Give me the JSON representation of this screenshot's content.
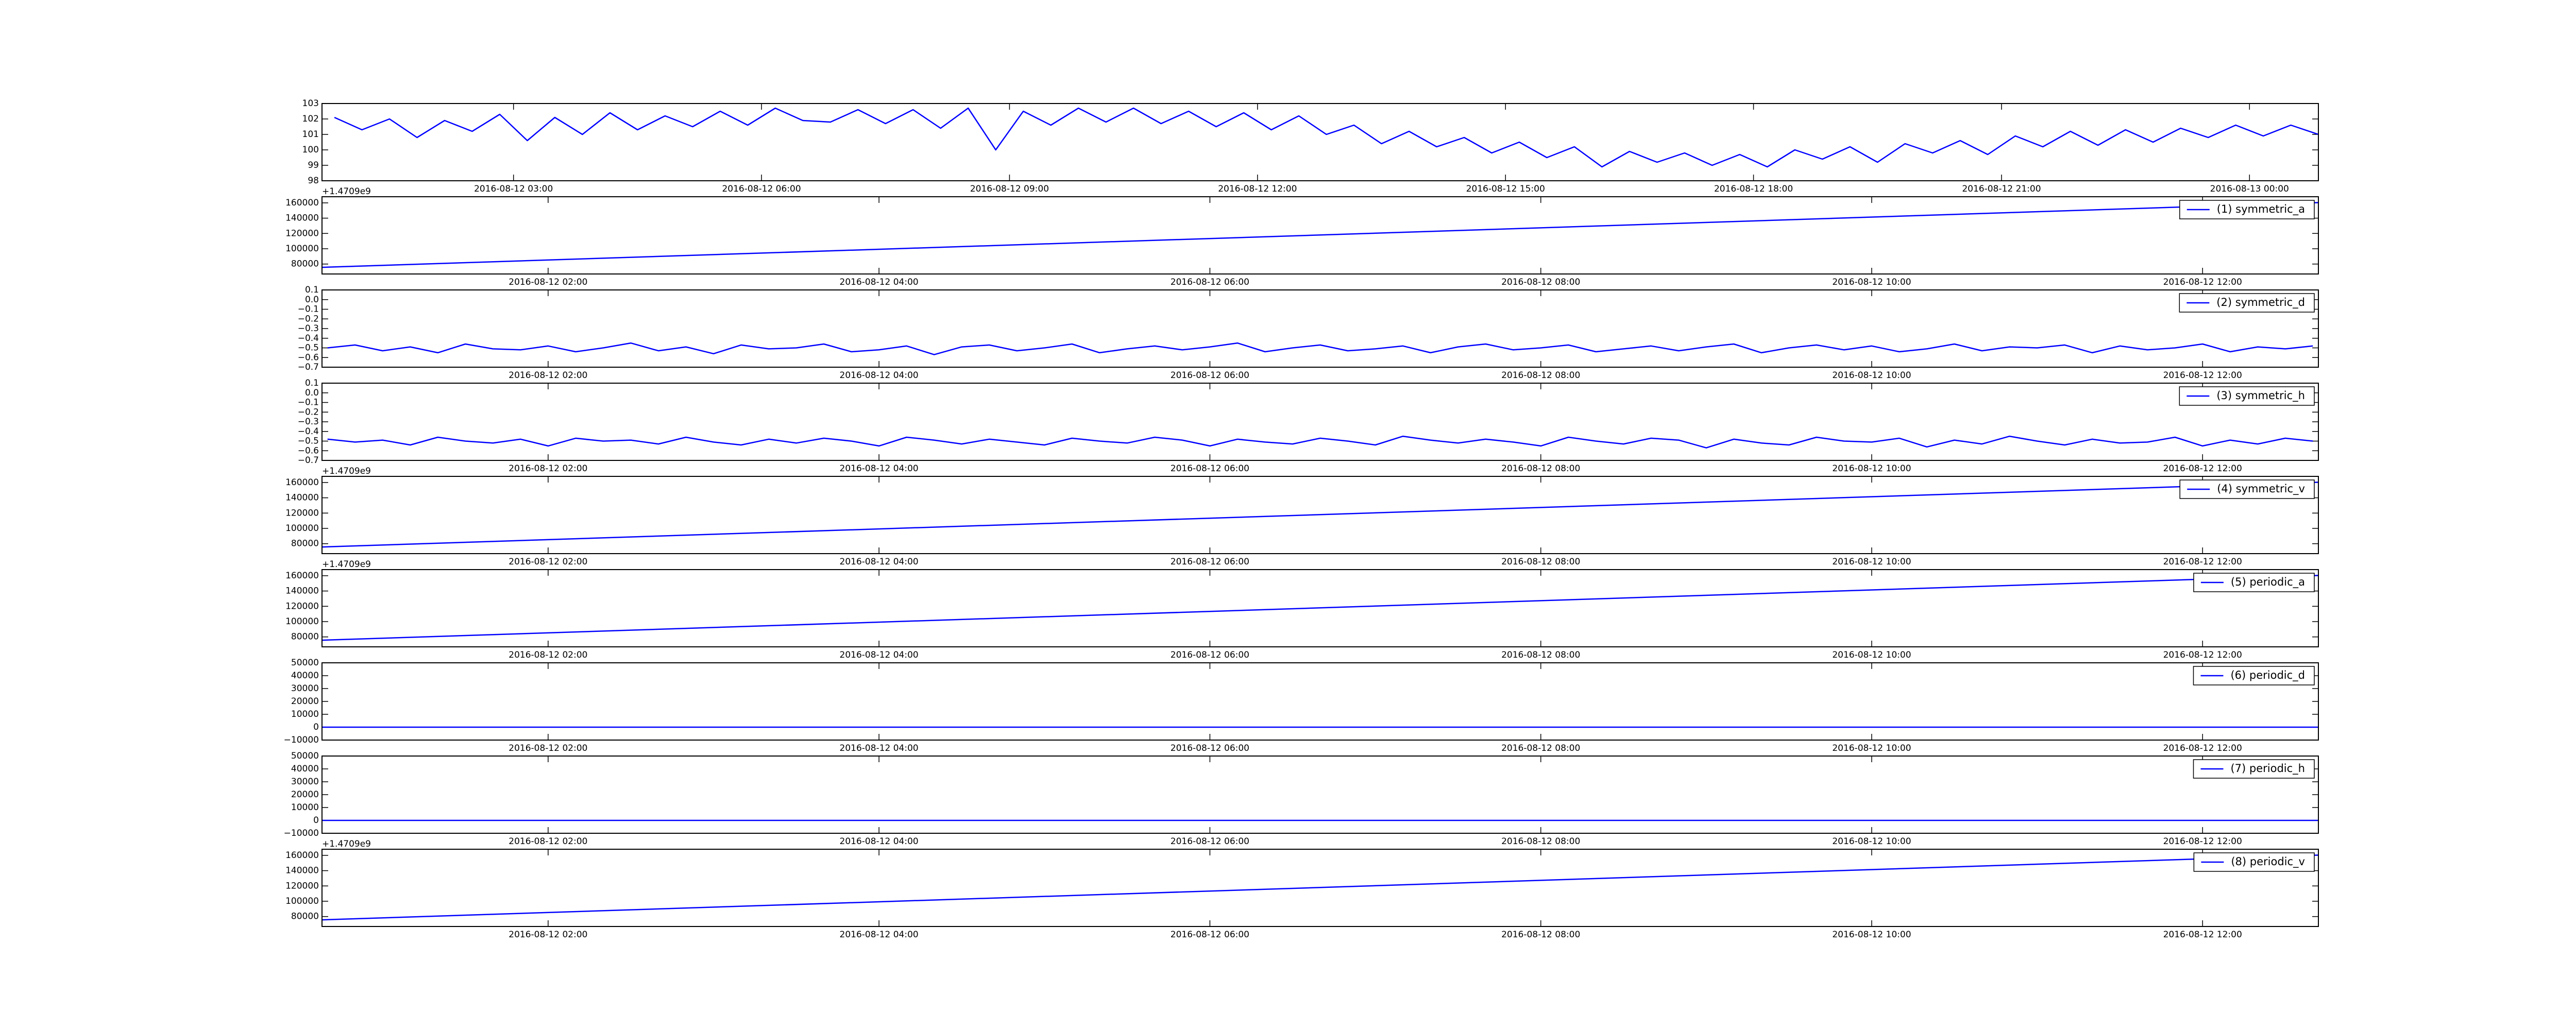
{
  "chart_data": [
    {
      "type": "line",
      "xlim": [
        "2016-08-12 00:41",
        "2016-08-13 00:50"
      ],
      "xticks": [
        "2016-08-12 03:00",
        "2016-08-12 06:00",
        "2016-08-12 09:00",
        "2016-08-12 12:00",
        "2016-08-12 15:00",
        "2016-08-12 18:00",
        "2016-08-12 21:00",
        "2016-08-13 00:00"
      ],
      "ylim": [
        98,
        103
      ],
      "yticks": [
        98,
        99,
        100,
        101,
        102,
        103
      ],
      "x": [
        "2016-08-12 00:50",
        "2016-08-12 01:10",
        "2016-08-12 01:30",
        "2016-08-12 01:50",
        "2016-08-12 02:10",
        "2016-08-12 02:30",
        "2016-08-12 02:50",
        "2016-08-12 03:10",
        "2016-08-12 03:30",
        "2016-08-12 03:50",
        "2016-08-12 04:10",
        "2016-08-12 04:30",
        "2016-08-12 04:50",
        "2016-08-12 05:10",
        "2016-08-12 05:30",
        "2016-08-12 05:50",
        "2016-08-12 06:10",
        "2016-08-12 06:30",
        "2016-08-12 06:50",
        "2016-08-12 07:10",
        "2016-08-12 07:30",
        "2016-08-12 07:50",
        "2016-08-12 08:10",
        "2016-08-12 08:30",
        "2016-08-12 08:50",
        "2016-08-12 09:10",
        "2016-08-12 09:30",
        "2016-08-12 09:50",
        "2016-08-12 10:10",
        "2016-08-12 10:30",
        "2016-08-12 10:50",
        "2016-08-12 11:10",
        "2016-08-12 11:30",
        "2016-08-12 11:50",
        "2016-08-12 12:10",
        "2016-08-12 12:30",
        "2016-08-12 12:50",
        "2016-08-12 13:10",
        "2016-08-12 13:30",
        "2016-08-12 13:50",
        "2016-08-12 14:10",
        "2016-08-12 14:30",
        "2016-08-12 14:50",
        "2016-08-12 15:10",
        "2016-08-12 15:30",
        "2016-08-12 15:50",
        "2016-08-12 16:10",
        "2016-08-12 16:30",
        "2016-08-12 16:50",
        "2016-08-12 17:10",
        "2016-08-12 17:30",
        "2016-08-12 17:50",
        "2016-08-12 18:10",
        "2016-08-12 18:30",
        "2016-08-12 18:50",
        "2016-08-12 19:10",
        "2016-08-12 19:30",
        "2016-08-12 19:50",
        "2016-08-12 20:10",
        "2016-08-12 20:30",
        "2016-08-12 20:50",
        "2016-08-12 21:10",
        "2016-08-12 21:30",
        "2016-08-12 21:50",
        "2016-08-12 22:10",
        "2016-08-12 22:30",
        "2016-08-12 22:50",
        "2016-08-12 23:10",
        "2016-08-12 23:30",
        "2016-08-12 23:50",
        "2016-08-13 00:10",
        "2016-08-13 00:30",
        "2016-08-13 00:50"
      ],
      "series": [
        {
          "color": "#0000ff",
          "values": [
            102.1,
            101.3,
            102.0,
            100.8,
            101.9,
            101.2,
            102.3,
            100.6,
            102.1,
            101.0,
            102.4,
            101.3,
            102.2,
            101.5,
            102.5,
            101.6,
            102.7,
            101.9,
            101.8,
            102.6,
            101.7,
            102.6,
            101.4,
            102.7,
            100.0,
            102.5,
            101.6,
            102.7,
            101.8,
            102.7,
            101.7,
            102.5,
            101.5,
            102.4,
            101.3,
            102.2,
            101.0,
            101.6,
            100.4,
            101.2,
            100.2,
            100.8,
            99.8,
            100.5,
            99.5,
            100.2,
            98.9,
            99.9,
            99.2,
            99.8,
            99.0,
            99.7,
            98.9,
            100.0,
            99.4,
            100.2,
            99.2,
            100.4,
            99.8,
            100.6,
            99.7,
            100.9,
            100.2,
            101.2,
            100.3,
            101.3,
            100.5,
            101.4,
            100.8,
            101.6,
            100.9,
            101.6,
            101.0
          ]
        }
      ]
    },
    {
      "type": "line",
      "offset_text": "+1.4709e9",
      "legend": "upper right",
      "xlim": [
        "2016-08-12 00:38",
        "2016-08-12 12:42"
      ],
      "xticks": [
        "2016-08-12 02:00",
        "2016-08-12 04:00",
        "2016-08-12 06:00",
        "2016-08-12 08:00",
        "2016-08-12 10:00",
        "2016-08-12 12:00"
      ],
      "ylim": [
        67000,
        168000
      ],
      "yticks": [
        80000,
        100000,
        120000,
        140000,
        160000
      ],
      "x": [
        "2016-08-12 00:38",
        "2016-08-12 12:42"
      ],
      "series": [
        {
          "name": "(1) symmetric_a",
          "color": "#0000ff",
          "values": [
            75700,
            160300
          ]
        }
      ]
    },
    {
      "type": "line",
      "legend": "upper right",
      "xlim": [
        "2016-08-12 00:38",
        "2016-08-12 12:42"
      ],
      "xticks": [
        "2016-08-12 02:00",
        "2016-08-12 04:00",
        "2016-08-12 06:00",
        "2016-08-12 08:00",
        "2016-08-12 10:00",
        "2016-08-12 12:00"
      ],
      "ylim": [
        -0.7,
        0.1
      ],
      "yticks": [
        {
          "value": -0.7,
          "label": "−0.7"
        },
        {
          "value": -0.6,
          "label": "−0.6"
        },
        {
          "value": -0.5,
          "label": "−0.5"
        },
        {
          "value": -0.4,
          "label": "−0.4"
        },
        {
          "value": -0.3,
          "label": "−0.3"
        },
        {
          "value": -0.2,
          "label": "−0.2"
        },
        {
          "value": -0.1,
          "label": "−0.1"
        },
        {
          "value": 0,
          "label": "0.0"
        },
        0.1
      ],
      "x": [
        "2016-08-12 00:40",
        "2016-08-12 00:50",
        "2016-08-12 01:00",
        "2016-08-12 01:10",
        "2016-08-12 01:20",
        "2016-08-12 01:30",
        "2016-08-12 01:40",
        "2016-08-12 01:50",
        "2016-08-12 02:00",
        "2016-08-12 02:10",
        "2016-08-12 02:20",
        "2016-08-12 02:30",
        "2016-08-12 02:40",
        "2016-08-12 02:50",
        "2016-08-12 03:00",
        "2016-08-12 03:10",
        "2016-08-12 03:20",
        "2016-08-12 03:30",
        "2016-08-12 03:40",
        "2016-08-12 03:50",
        "2016-08-12 04:00",
        "2016-08-12 04:10",
        "2016-08-12 04:20",
        "2016-08-12 04:30",
        "2016-08-12 04:40",
        "2016-08-12 04:50",
        "2016-08-12 05:00",
        "2016-08-12 05:10",
        "2016-08-12 05:20",
        "2016-08-12 05:30",
        "2016-08-12 05:40",
        "2016-08-12 05:50",
        "2016-08-12 06:00",
        "2016-08-12 06:10",
        "2016-08-12 06:20",
        "2016-08-12 06:30",
        "2016-08-12 06:40",
        "2016-08-12 06:50",
        "2016-08-12 07:00",
        "2016-08-12 07:10",
        "2016-08-12 07:20",
        "2016-08-12 07:30",
        "2016-08-12 07:40",
        "2016-08-12 07:50",
        "2016-08-12 08:00",
        "2016-08-12 08:10",
        "2016-08-12 08:20",
        "2016-08-12 08:30",
        "2016-08-12 08:40",
        "2016-08-12 08:50",
        "2016-08-12 09:00",
        "2016-08-12 09:10",
        "2016-08-12 09:20",
        "2016-08-12 09:30",
        "2016-08-12 09:40",
        "2016-08-12 09:50",
        "2016-08-12 10:00",
        "2016-08-12 10:10",
        "2016-08-12 10:20",
        "2016-08-12 10:30",
        "2016-08-12 10:40",
        "2016-08-12 10:50",
        "2016-08-12 11:00",
        "2016-08-12 11:10",
        "2016-08-12 11:20",
        "2016-08-12 11:30",
        "2016-08-12 11:40",
        "2016-08-12 11:50",
        "2016-08-12 12:00",
        "2016-08-12 12:10",
        "2016-08-12 12:20",
        "2016-08-12 12:30",
        "2016-08-12 12:40"
      ],
      "series": [
        {
          "name": "(2) symmetric_d",
          "color": "#0000ff",
          "values": [
            -0.5,
            -0.47,
            -0.53,
            -0.49,
            -0.55,
            -0.46,
            -0.51,
            -0.52,
            -0.48,
            -0.54,
            -0.5,
            -0.45,
            -0.53,
            -0.49,
            -0.56,
            -0.47,
            -0.51,
            -0.5,
            -0.46,
            -0.54,
            -0.52,
            -0.48,
            -0.57,
            -0.49,
            -0.47,
            -0.53,
            -0.5,
            -0.46,
            -0.55,
            -0.51,
            -0.48,
            -0.52,
            -0.49,
            -0.45,
            -0.54,
            -0.5,
            -0.47,
            -0.53,
            -0.51,
            -0.48,
            -0.55,
            -0.49,
            -0.46,
            -0.52,
            -0.5,
            -0.47,
            -0.54,
            -0.51,
            -0.48,
            -0.53,
            -0.49,
            -0.46,
            -0.55,
            -0.5,
            -0.47,
            -0.52,
            -0.48,
            -0.54,
            -0.51,
            -0.46,
            -0.53,
            -0.49,
            -0.5,
            -0.47,
            -0.55,
            -0.48,
            -0.52,
            -0.5,
            -0.46,
            -0.54,
            -0.49,
            -0.51,
            -0.48
          ]
        }
      ]
    },
    {
      "type": "line",
      "legend": "upper right",
      "xlim": [
        "2016-08-12 00:38",
        "2016-08-12 12:42"
      ],
      "xticks": [
        "2016-08-12 02:00",
        "2016-08-12 04:00",
        "2016-08-12 06:00",
        "2016-08-12 08:00",
        "2016-08-12 10:00",
        "2016-08-12 12:00"
      ],
      "ylim": [
        -0.7,
        0.1
      ],
      "yticks": [
        {
          "value": -0.7,
          "label": "−0.7"
        },
        {
          "value": -0.6,
          "label": "−0.6"
        },
        {
          "value": -0.5,
          "label": "−0.5"
        },
        {
          "value": -0.4,
          "label": "−0.4"
        },
        {
          "value": -0.3,
          "label": "−0.3"
        },
        {
          "value": -0.2,
          "label": "−0.2"
        },
        {
          "value": -0.1,
          "label": "−0.1"
        },
        {
          "value": 0,
          "label": "0.0"
        },
        0.1
      ],
      "x": [
        "2016-08-12 00:40",
        "2016-08-12 00:50",
        "2016-08-12 01:00",
        "2016-08-12 01:10",
        "2016-08-12 01:20",
        "2016-08-12 01:30",
        "2016-08-12 01:40",
        "2016-08-12 01:50",
        "2016-08-12 02:00",
        "2016-08-12 02:10",
        "2016-08-12 02:20",
        "2016-08-12 02:30",
        "2016-08-12 02:40",
        "2016-08-12 02:50",
        "2016-08-12 03:00",
        "2016-08-12 03:10",
        "2016-08-12 03:20",
        "2016-08-12 03:30",
        "2016-08-12 03:40",
        "2016-08-12 03:50",
        "2016-08-12 04:00",
        "2016-08-12 04:10",
        "2016-08-12 04:20",
        "2016-08-12 04:30",
        "2016-08-12 04:40",
        "2016-08-12 04:50",
        "2016-08-12 05:00",
        "2016-08-12 05:10",
        "2016-08-12 05:20",
        "2016-08-12 05:30",
        "2016-08-12 05:40",
        "2016-08-12 05:50",
        "2016-08-12 06:00",
        "2016-08-12 06:10",
        "2016-08-12 06:20",
        "2016-08-12 06:30",
        "2016-08-12 06:40",
        "2016-08-12 06:50",
        "2016-08-12 07:00",
        "2016-08-12 07:10",
        "2016-08-12 07:20",
        "2016-08-12 07:30",
        "2016-08-12 07:40",
        "2016-08-12 07:50",
        "2016-08-12 08:00",
        "2016-08-12 08:10",
        "2016-08-12 08:20",
        "2016-08-12 08:30",
        "2016-08-12 08:40",
        "2016-08-12 08:50",
        "2016-08-12 09:00",
        "2016-08-12 09:10",
        "2016-08-12 09:20",
        "2016-08-12 09:30",
        "2016-08-12 09:40",
        "2016-08-12 09:50",
        "2016-08-12 10:00",
        "2016-08-12 10:10",
        "2016-08-12 10:20",
        "2016-08-12 10:30",
        "2016-08-12 10:40",
        "2016-08-12 10:50",
        "2016-08-12 11:00",
        "2016-08-12 11:10",
        "2016-08-12 11:20",
        "2016-08-12 11:30",
        "2016-08-12 11:40",
        "2016-08-12 11:50",
        "2016-08-12 12:00",
        "2016-08-12 12:10",
        "2016-08-12 12:20",
        "2016-08-12 12:30",
        "2016-08-12 12:40"
      ],
      "series": [
        {
          "name": "(3) symmetric_h",
          "color": "#0000ff",
          "values": [
            -0.48,
            -0.51,
            -0.49,
            -0.54,
            -0.46,
            -0.5,
            -0.52,
            -0.48,
            -0.55,
            -0.47,
            -0.5,
            -0.49,
            -0.53,
            -0.46,
            -0.51,
            -0.54,
            -0.48,
            -0.52,
            -0.47,
            -0.5,
            -0.55,
            -0.46,
            -0.49,
            -0.53,
            -0.48,
            -0.51,
            -0.54,
            -0.47,
            -0.5,
            -0.52,
            -0.46,
            -0.49,
            -0.55,
            -0.48,
            -0.51,
            -0.53,
            -0.47,
            -0.5,
            -0.54,
            -0.45,
            -0.49,
            -0.52,
            -0.48,
            -0.51,
            -0.55,
            -0.46,
            -0.5,
            -0.53,
            -0.47,
            -0.49,
            -0.57,
            -0.48,
            -0.52,
            -0.54,
            -0.46,
            -0.5,
            -0.51,
            -0.47,
            -0.56,
            -0.49,
            -0.53,
            -0.45,
            -0.5,
            -0.54,
            -0.48,
            -0.52,
            -0.51,
            -0.46,
            -0.55,
            -0.49,
            -0.53,
            -0.47,
            -0.5
          ]
        }
      ]
    },
    {
      "type": "line",
      "offset_text": "+1.4709e9",
      "legend": "upper right",
      "xlim": [
        "2016-08-12 00:38",
        "2016-08-12 12:42"
      ],
      "xticks": [
        "2016-08-12 02:00",
        "2016-08-12 04:00",
        "2016-08-12 06:00",
        "2016-08-12 08:00",
        "2016-08-12 10:00",
        "2016-08-12 12:00"
      ],
      "ylim": [
        67000,
        168000
      ],
      "yticks": [
        80000,
        100000,
        120000,
        140000,
        160000
      ],
      "x": [
        "2016-08-12 00:38",
        "2016-08-12 12:42"
      ],
      "series": [
        {
          "name": "(4) symmetric_v",
          "color": "#0000ff",
          "values": [
            75700,
            160300
          ]
        }
      ]
    },
    {
      "type": "line",
      "offset_text": "+1.4709e9",
      "legend": "upper right",
      "xlim": [
        "2016-08-12 00:38",
        "2016-08-12 12:42"
      ],
      "xticks": [
        "2016-08-12 02:00",
        "2016-08-12 04:00",
        "2016-08-12 06:00",
        "2016-08-12 08:00",
        "2016-08-12 10:00",
        "2016-08-12 12:00"
      ],
      "ylim": [
        67000,
        168000
      ],
      "yticks": [
        80000,
        100000,
        120000,
        140000,
        160000
      ],
      "x": [
        "2016-08-12 00:38",
        "2016-08-12 12:42"
      ],
      "series": [
        {
          "name": "(5) periodic_a",
          "color": "#0000ff",
          "values": [
            75700,
            160300
          ]
        }
      ]
    },
    {
      "type": "line",
      "legend": "upper right",
      "xlim": [
        "2016-08-12 00:38",
        "2016-08-12 12:42"
      ],
      "xticks": [
        "2016-08-12 02:00",
        "2016-08-12 04:00",
        "2016-08-12 06:00",
        "2016-08-12 08:00",
        "2016-08-12 10:00",
        "2016-08-12 12:00"
      ],
      "ylim": [
        -10000,
        50000
      ],
      "yticks": [
        {
          "value": -10000,
          "label": "−10000"
        },
        0,
        10000,
        20000,
        30000,
        40000,
        50000
      ],
      "x": [
        "2016-08-12 00:38",
        "2016-08-12 12:42"
      ],
      "series": [
        {
          "name": "(6) periodic_d",
          "color": "#0000ff",
          "values": [
            0,
            0
          ]
        }
      ]
    },
    {
      "type": "line",
      "legend": "upper right",
      "xlim": [
        "2016-08-12 00:38",
        "2016-08-12 12:42"
      ],
      "xticks": [
        "2016-08-12 02:00",
        "2016-08-12 04:00",
        "2016-08-12 06:00",
        "2016-08-12 08:00",
        "2016-08-12 10:00",
        "2016-08-12 12:00"
      ],
      "ylim": [
        -10000,
        50000
      ],
      "yticks": [
        {
          "value": -10000,
          "label": "−10000"
        },
        0,
        10000,
        20000,
        30000,
        40000,
        50000
      ],
      "x": [
        "2016-08-12 00:38",
        "2016-08-12 12:42"
      ],
      "series": [
        {
          "name": "(7) periodic_h",
          "color": "#0000ff",
          "values": [
            0,
            0
          ]
        }
      ]
    },
    {
      "type": "line",
      "offset_text": "+1.4709e9",
      "legend": "upper right",
      "xlim": [
        "2016-08-12 00:38",
        "2016-08-12 12:42"
      ],
      "xticks": [
        "2016-08-12 02:00",
        "2016-08-12 04:00",
        "2016-08-12 06:00",
        "2016-08-12 08:00",
        "2016-08-12 10:00",
        "2016-08-12 12:00"
      ],
      "ylim": [
        67000,
        168000
      ],
      "yticks": [
        80000,
        100000,
        120000,
        140000,
        160000
      ],
      "x": [
        "2016-08-12 00:38",
        "2016-08-12 12:42"
      ],
      "series": [
        {
          "name": "(8) periodic_v",
          "color": "#0000ff",
          "values": [
            75700,
            160300
          ]
        }
      ]
    }
  ]
}
